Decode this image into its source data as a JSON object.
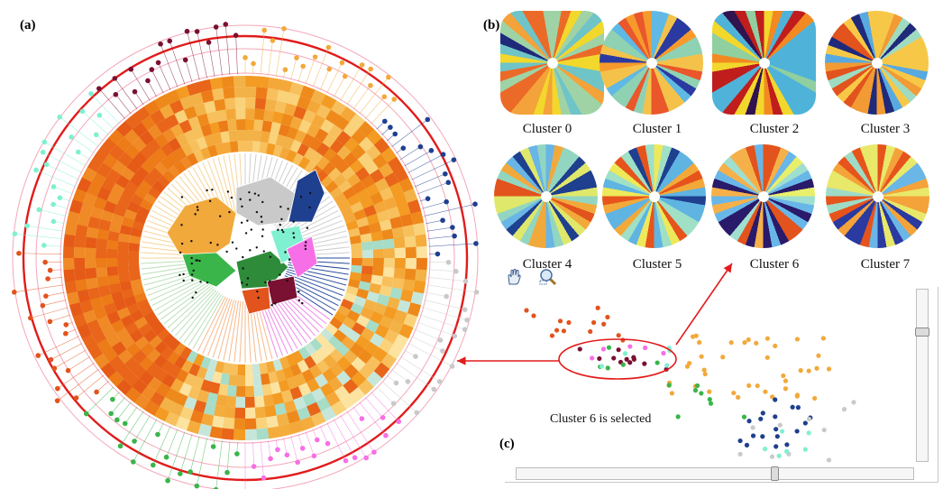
{
  "panels": {
    "a": "(a)",
    "b": "(b)",
    "c": "(c)"
  },
  "clusters": [
    "Cluster 0",
    "Cluster 1",
    "Cluster 2",
    "Cluster 3",
    "Cluster 4",
    "Cluster 5",
    "Cluster 6",
    "Cluster 7"
  ],
  "selection_note": "Cluster 6 is selected",
  "colors": {
    "highlight_red": "#e21b1b",
    "cluster_palette": [
      "#f2a93b",
      "#1f3f8f",
      "#c9c9c9",
      "#f76fe6",
      "#39b54a",
      "#e2531d",
      "#7ff0d0",
      "#7a1032"
    ]
  },
  "icons": {
    "hand": "hand-pan-icon",
    "zoom": "zoom-magnifier-icon"
  }
}
